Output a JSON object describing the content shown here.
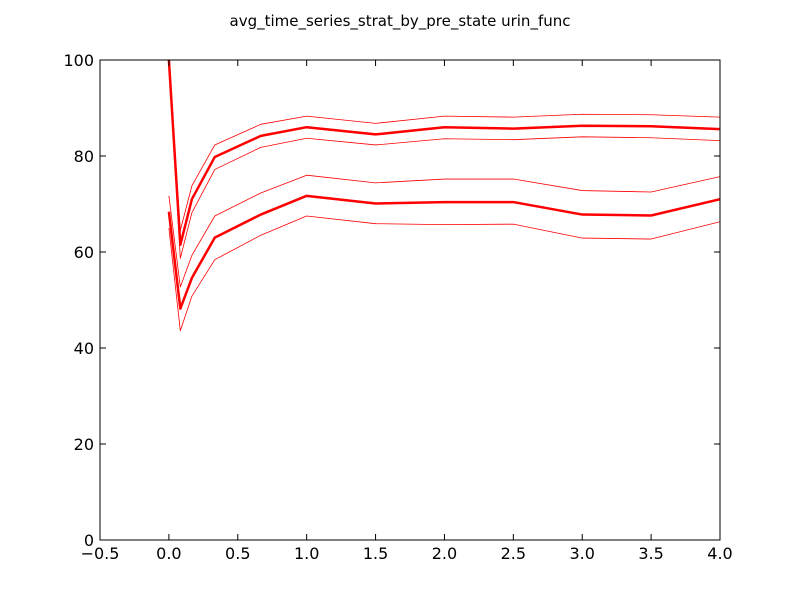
{
  "chart_data": {
    "type": "line",
    "title": "avg_time_series_strat_by_pre_state urin_func",
    "xlabel": "",
    "ylabel": "",
    "xlim": [
      -0.5,
      4.0
    ],
    "ylim": [
      0,
      100
    ],
    "xticks": [
      -0.5,
      0.0,
      0.5,
      1.0,
      1.5,
      2.0,
      2.5,
      3.0,
      3.5,
      4.0
    ],
    "xtick_labels": [
      "−0.5",
      "0.0",
      "0.5",
      "1.0",
      "1.5",
      "2.0",
      "2.5",
      "3.0",
      "3.5",
      "4.0"
    ],
    "yticks": [
      0,
      20,
      40,
      60,
      80,
      100
    ],
    "ytick_labels": [
      "0",
      "20",
      "40",
      "60",
      "80",
      "100"
    ],
    "grid": false,
    "line_color": "#ff0000",
    "x": [
      0.0,
      0.083,
      0.167,
      0.333,
      0.667,
      1.0,
      1.5,
      2.0,
      2.5,
      3.0,
      3.5,
      4.0
    ],
    "series": [
      {
        "style": "mean",
        "values": [
          100,
          61.5,
          71.0,
          79.8,
          84.2,
          86.0,
          84.5,
          86.0,
          85.7,
          86.3,
          86.2,
          85.6
        ]
      },
      {
        "style": "bound",
        "values": [
          100,
          64.5,
          73.8,
          82.3,
          86.6,
          88.3,
          86.8,
          88.3,
          88.1,
          88.7,
          88.6,
          88.1
        ]
      },
      {
        "style": "bound",
        "values": [
          100,
          58.7,
          68.2,
          77.2,
          81.8,
          83.7,
          82.3,
          83.6,
          83.4,
          84.0,
          83.8,
          83.2
        ]
      },
      {
        "style": "mean",
        "values": [
          68.4,
          48.2,
          54.6,
          63.0,
          67.8,
          71.7,
          70.1,
          70.4,
          70.4,
          67.8,
          67.6,
          71.0
        ]
      },
      {
        "style": "bound",
        "values": [
          71.7,
          52.7,
          59.3,
          67.5,
          72.3,
          76.0,
          74.4,
          75.2,
          75.2,
          72.8,
          72.5,
          75.7
        ]
      },
      {
        "style": "bound",
        "values": [
          65.0,
          43.6,
          50.8,
          58.4,
          63.5,
          67.5,
          65.9,
          65.7,
          65.8,
          62.9,
          62.7,
          66.3
        ]
      }
    ]
  }
}
